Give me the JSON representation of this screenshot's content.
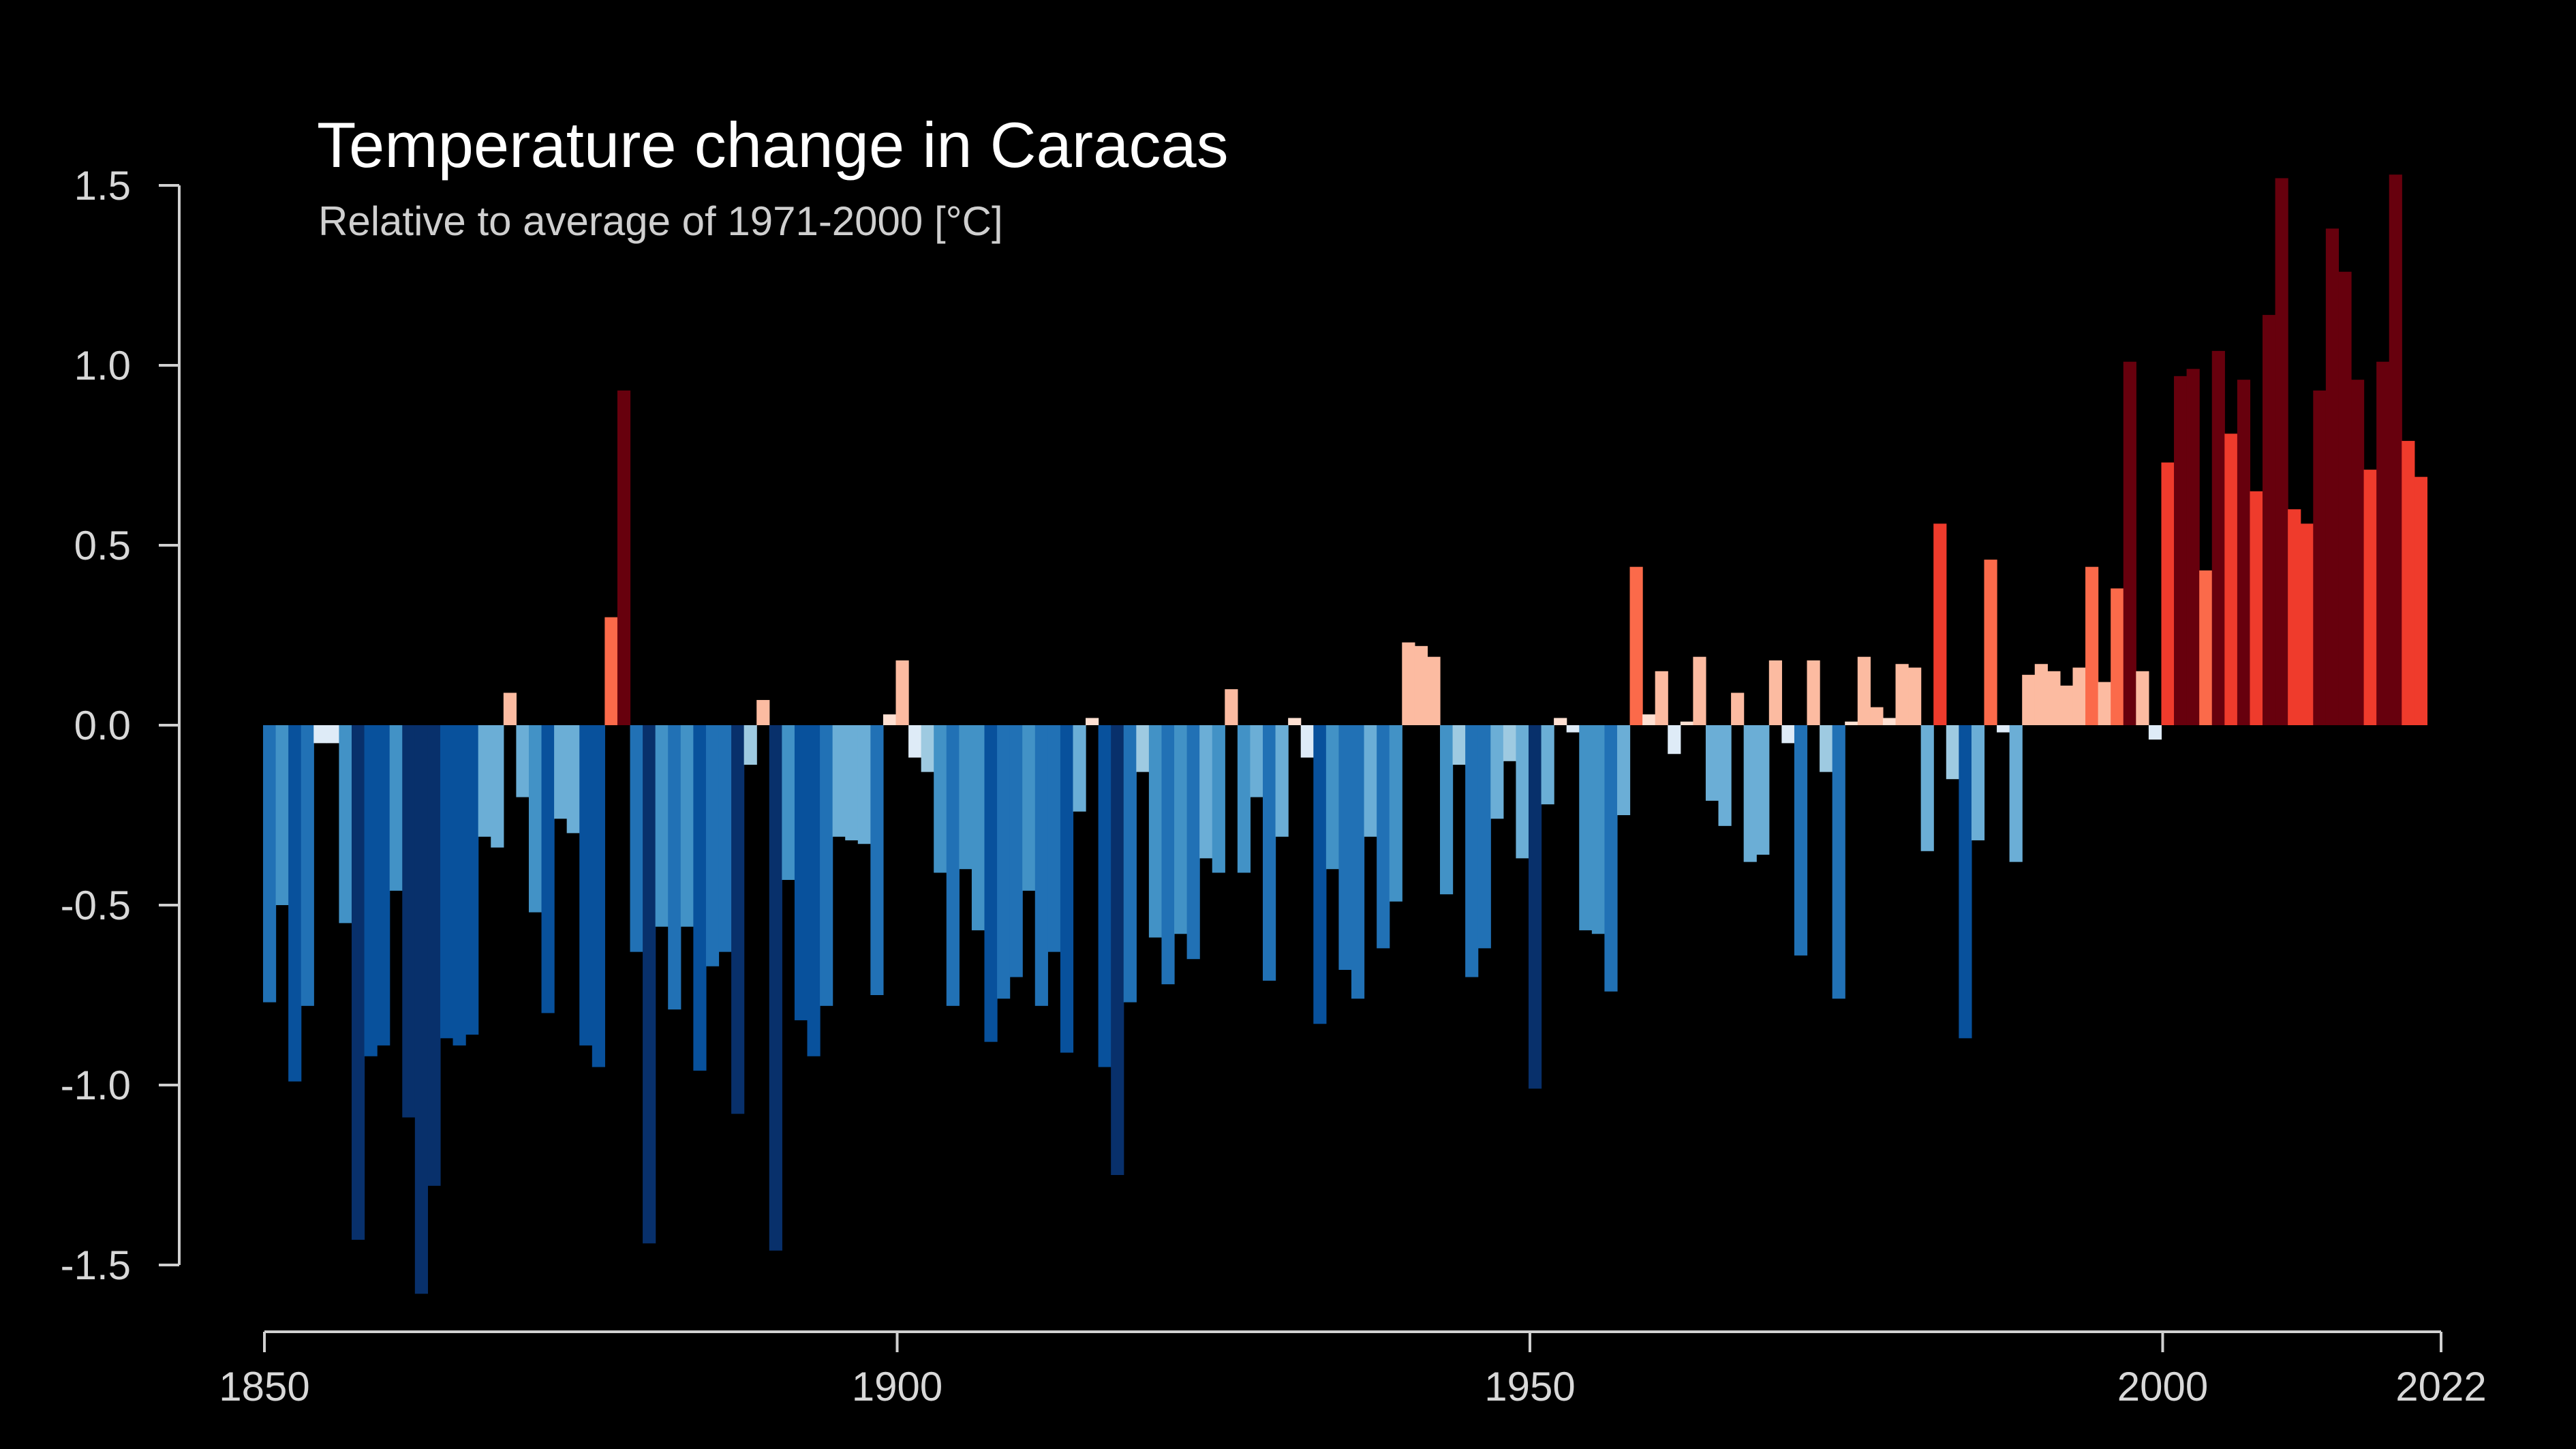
{
  "chart_data": {
    "type": "bar",
    "title": "Temperature change in Caracas",
    "subtitle": "Relative to average of 1971-2000  [°C]",
    "xlabel": "",
    "ylabel": "",
    "xlim": [
      1850,
      2022
    ],
    "ylim": [
      -1.5,
      1.5
    ],
    "y_ticks": [
      "1.5",
      "1.0",
      "0.5",
      "0.0",
      "-0.5",
      "-1.0",
      "-1.5"
    ],
    "x_ticks": [
      "1850",
      "1900",
      "1950",
      "2000",
      "2022"
    ],
    "years_start": 1850,
    "values": [
      -0.77,
      -0.5,
      -0.99,
      -0.78,
      -0.05,
      -0.05,
      -0.55,
      -1.43,
      -0.92,
      -0.89,
      -0.46,
      -1.09,
      -1.58,
      -1.28,
      -0.87,
      -0.89,
      -0.86,
      -0.31,
      -0.34,
      0.09,
      -0.2,
      -0.52,
      -0.8,
      -0.26,
      -0.3,
      -0.89,
      -0.95,
      0.3,
      0.93,
      -0.63,
      -1.44,
      -0.56,
      -0.79,
      -0.56,
      -0.96,
      -0.67,
      -0.63,
      -1.08,
      -0.11,
      0.07,
      -1.46,
      -0.43,
      -0.82,
      -0.92,
      -0.78,
      -0.31,
      -0.32,
      -0.33,
      -0.75,
      0.03,
      0.18,
      -0.09,
      -0.13,
      -0.41,
      -0.78,
      -0.4,
      -0.57,
      -0.88,
      -0.76,
      -0.7,
      -0.46,
      -0.78,
      -0.63,
      -0.91,
      -0.24,
      0.02,
      -0.95,
      -1.25,
      -0.77,
      -0.13,
      -0.59,
      -0.72,
      -0.58,
      -0.65,
      -0.37,
      -0.41,
      0.1,
      -0.41,
      -0.2,
      -0.71,
      -0.31,
      0.02,
      -0.09,
      -0.83,
      -0.4,
      -0.68,
      -0.76,
      -0.31,
      -0.62,
      -0.49,
      0.23,
      0.22,
      0.19,
      -0.47,
      -0.11,
      -0.7,
      -0.62,
      -0.26,
      -0.1,
      -0.37,
      -1.01,
      -0.22,
      0.02,
      -0.02,
      -0.57,
      -0.58,
      -0.74,
      -0.25,
      0.44,
      0.03,
      0.15,
      -0.08,
      0.01,
      0.19,
      -0.21,
      -0.28,
      0.09,
      -0.38,
      -0.36,
      0.18,
      -0.05,
      -0.64,
      0.18,
      -0.13,
      -0.76,
      0.01,
      0.19,
      0.05,
      0.02,
      0.17,
      0.16,
      -0.35,
      0.56,
      -0.15,
      -0.87,
      -0.32,
      0.46,
      -0.02,
      -0.38,
      0.14,
      0.17,
      0.15,
      0.11,
      0.16,
      0.44,
      0.12,
      0.38,
      1.01,
      0.15,
      -0.04,
      0.73,
      0.97,
      0.99,
      0.43,
      1.04,
      0.81,
      0.96,
      0.65,
      1.14,
      1.52,
      0.6,
      0.56,
      0.93,
      1.38,
      1.26,
      0.96,
      0.71,
      1.01,
      1.53,
      0.79,
      0.69
    ]
  }
}
